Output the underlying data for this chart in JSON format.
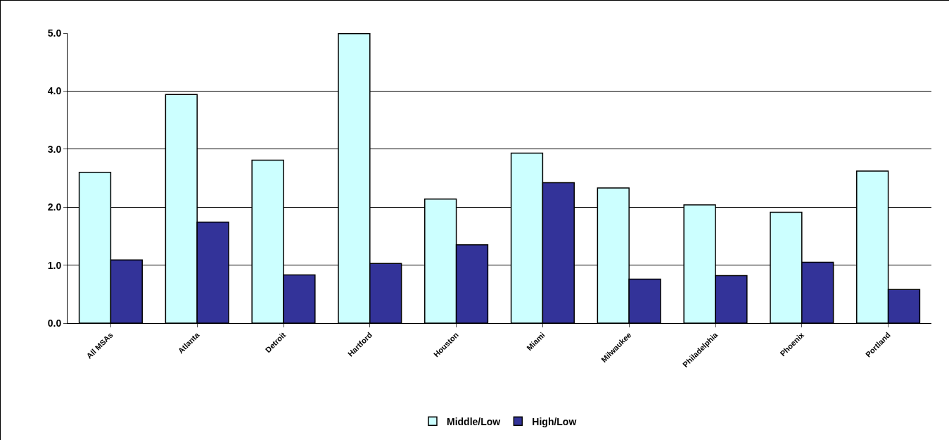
{
  "chart_data": {
    "type": "bar",
    "categories": [
      "All MSAs",
      "Atlanta",
      "Detroit",
      "Hartford",
      "Houston",
      "Miami",
      "Milwaukee",
      "Philadelphia",
      "Phoenix",
      "Portland"
    ],
    "series": [
      {
        "name": "Middle/Low",
        "color": "#ccffff",
        "values": [
          2.6,
          3.94,
          2.81,
          4.99,
          2.14,
          2.93,
          2.33,
          2.04,
          1.91,
          2.62
        ]
      },
      {
        "name": "High/Low",
        "color": "#333399",
        "values": [
          1.09,
          1.74,
          0.83,
          1.03,
          1.35,
          2.42,
          0.76,
          0.82,
          1.05,
          0.58
        ]
      }
    ],
    "ylim": [
      0,
      5
    ],
    "yticks": [
      {
        "value": 0,
        "label": "0.0"
      },
      {
        "value": 1,
        "label": "1.0"
      },
      {
        "value": 2,
        "label": "2.0"
      },
      {
        "value": 3,
        "label": "3.0"
      },
      {
        "value": 4,
        "label": "4.0"
      },
      {
        "value": 5,
        "label": "5.0"
      }
    ],
    "grid": "y",
    "legend": "bottom"
  }
}
